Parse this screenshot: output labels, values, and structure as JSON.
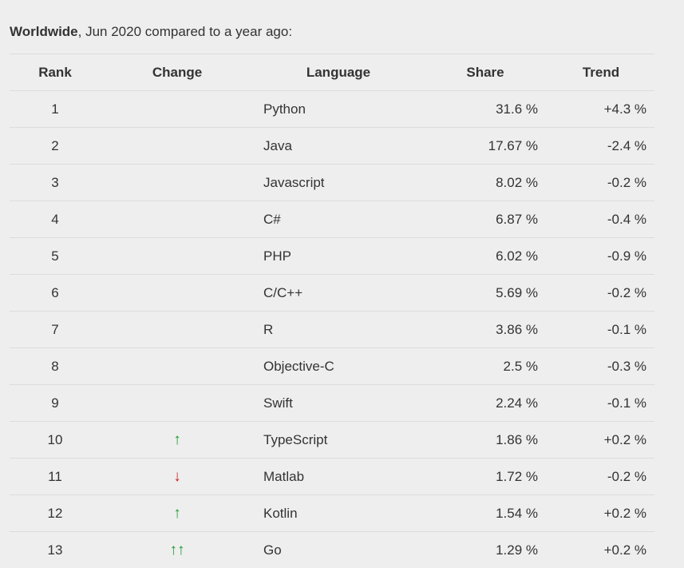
{
  "caption": {
    "bold": "Worldwide",
    "rest": ", Jun 2020 compared to a year ago:"
  },
  "table": {
    "header": [
      "Rank",
      "Change",
      "Language",
      "Share",
      "Trend"
    ],
    "rows": [
      [
        "1",
        null,
        "Python",
        "31.6 %",
        "+4.3 %"
      ],
      [
        "2",
        null,
        "Java",
        "17.67 %",
        "-2.4 %"
      ],
      [
        "3",
        null,
        "Javascript",
        "8.02 %",
        "-0.2 %"
      ],
      [
        "4",
        null,
        "C#",
        "6.87 %",
        "-0.4 %"
      ],
      [
        "5",
        null,
        "PHP",
        "6.02 %",
        "-0.9 %"
      ],
      [
        "6",
        null,
        "C/C++",
        "5.69 %",
        "-0.2 %"
      ],
      [
        "7",
        null,
        "R",
        "3.86 %",
        "-0.1 %"
      ],
      [
        "8",
        null,
        "Objective-C",
        "2.5 %",
        "-0.3 %"
      ],
      [
        "9",
        null,
        "Swift",
        "2.24 %",
        "-0.1 %"
      ],
      [
        "10",
        "↑",
        "TypeScript",
        "1.86 %",
        "+0.2 %"
      ],
      [
        "11",
        "↓",
        "Matlab",
        "1.72 %",
        "-0.2 %"
      ],
      [
        "12",
        "↑",
        "Kotlin",
        "1.54 %",
        "+0.2 %"
      ],
      [
        "13",
        "↑↑",
        "Go",
        "1.29 %",
        "+0.2 %"
      ]
    ]
  }
}
